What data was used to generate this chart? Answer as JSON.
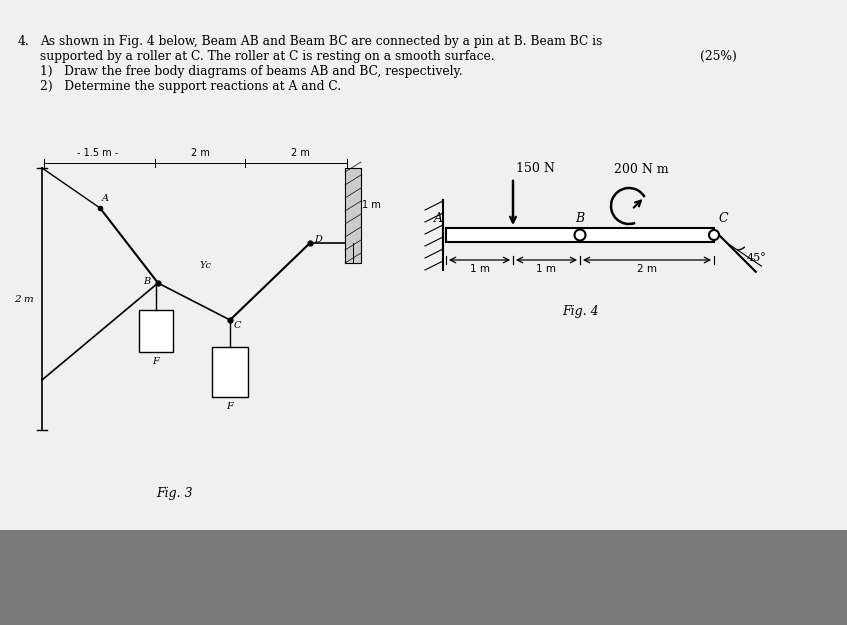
{
  "bg_dark": "#7a7a7a",
  "bg_paper": "#f0f0f0",
  "line_color": "#111111",
  "text_color": "#111111",
  "wall_color": "#aaaaaa",
  "beam_fill": "#e0e0e0",
  "line1": "As shown in Fig. 4 below, Beam AB and Beam BC are connected by a pin at B. Beam BC is",
  "line2": "supported by a roller at C. The roller at C is resting on a smooth surface.",
  "line2r": "(25%)",
  "line3": "1)   Draw the free body diagrams of beams AB and BC, respectively.",
  "line4": "2)   Determine the support reactions at A and C.",
  "fig3_label": "Fig. 3",
  "fig4_label": "Fig. 4",
  "fig3_top_dim": "- 1.5 m -",
  "fig3_top_dim2": "2 m",
  "fig3_top_dim3": "2 m",
  "fig3_left_dim": "2 m",
  "fig3_right_dim": "1 m",
  "fig4_force": "150 N",
  "fig4_moment": "200 N m",
  "fig4_angle": "45°",
  "fig4_d1": "1 m",
  "fig4_d2": "1 m",
  "fig4_d3": "2 m"
}
